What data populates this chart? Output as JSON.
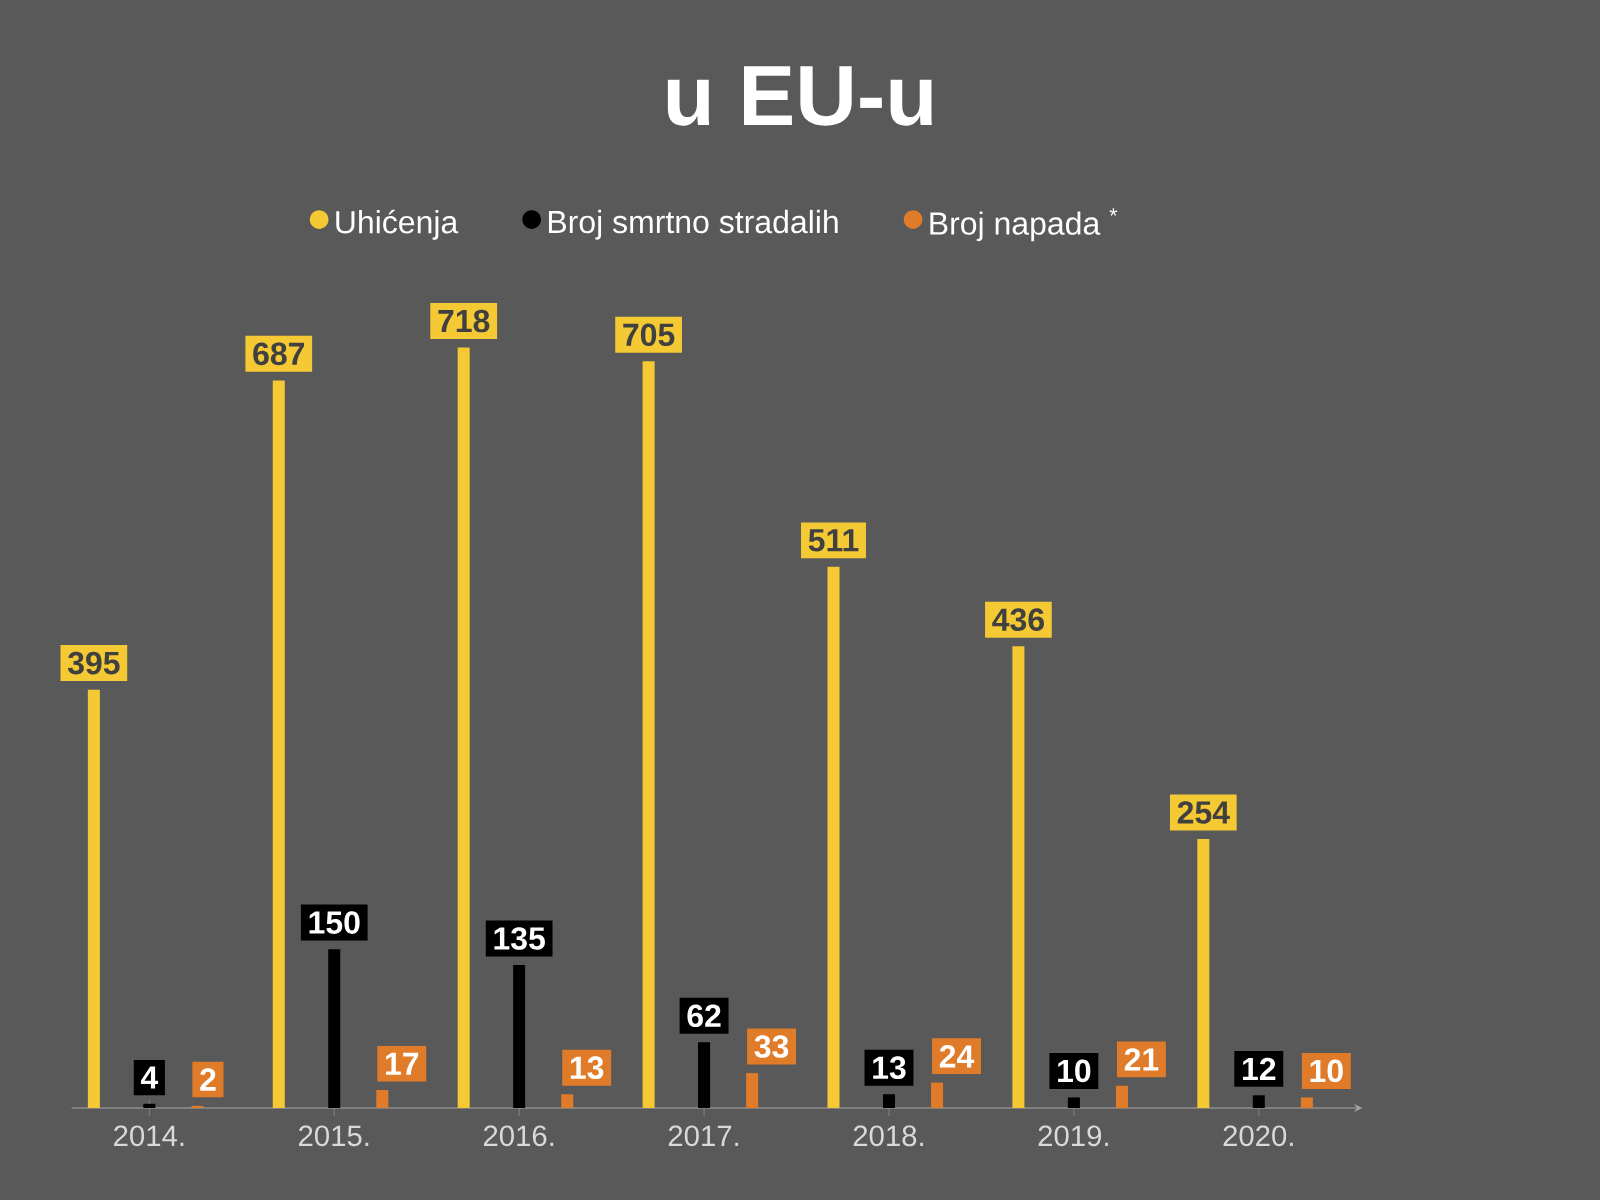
{
  "chart_data": {
    "type": "bar",
    "title": "u EU-u",
    "categories": [
      "2014.",
      "2015.",
      "2016.",
      "2017.",
      "2018.",
      "2019.",
      "2020."
    ],
    "series": [
      {
        "name": "Uhićenja",
        "color": "#f5c933",
        "values": [
          395,
          687,
          718,
          705,
          511,
          436,
          254
        ]
      },
      {
        "name": "Broj smrtno stradalih",
        "color": "#000000",
        "values": [
          4,
          150,
          135,
          62,
          13,
          10,
          12
        ]
      },
      {
        "name": "Broj napada $^{*}$",
        "color": "#e07b2a",
        "values": [
          2,
          17,
          13,
          33,
          24,
          21,
          10
        ]
      }
    ],
    "tick_labels": "x",
    "legend": "top",
    "data_labels": true
  }
}
